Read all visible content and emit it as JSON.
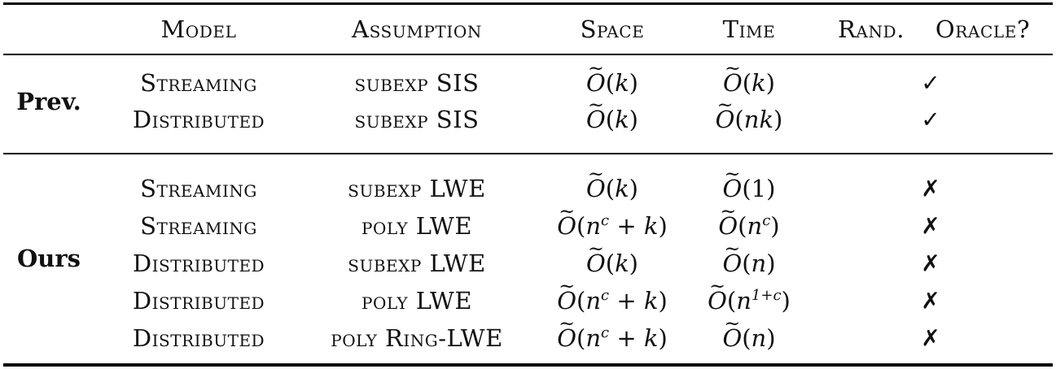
{
  "table": {
    "headers": {
      "model": "Model",
      "assumption": "Assumption",
      "space": "Space",
      "time": "Time",
      "rand": "Rand.",
      "oracle": "Oracle?"
    },
    "groups": {
      "prev": "Prev.",
      "ours": "Ours"
    },
    "rows": [
      {
        "model": "Streaming",
        "assumption": "subexp SIS",
        "space": "(k)",
        "time": "(k)",
        "mark": "✓"
      },
      {
        "model": "Distributed",
        "assumption": "subexp SIS",
        "space": "(k)",
        "time": "(nk)",
        "mark": "✓"
      },
      {
        "model": "Streaming",
        "assumption": "subexp LWE",
        "space": "(k)",
        "time": "(1)",
        "mark": "✗"
      },
      {
        "model": "Streaming",
        "assumption": "poly LWE",
        "space": "(n^c + k)",
        "time": "(n^c)",
        "mark": "✗"
      },
      {
        "model": "Distributed",
        "assumption": "subexp LWE",
        "space": "(k)",
        "time": "(n)",
        "mark": "✗"
      },
      {
        "model": "Distributed",
        "assumption": "poly LWE",
        "space": "(n^c + k)",
        "time": "(n^{1+c})",
        "mark": "✗"
      },
      {
        "model": "Distributed",
        "assumption": "poly Ring-LWE",
        "space": "(n^c + k)",
        "time": "(n)",
        "mark": "✗"
      }
    ]
  }
}
